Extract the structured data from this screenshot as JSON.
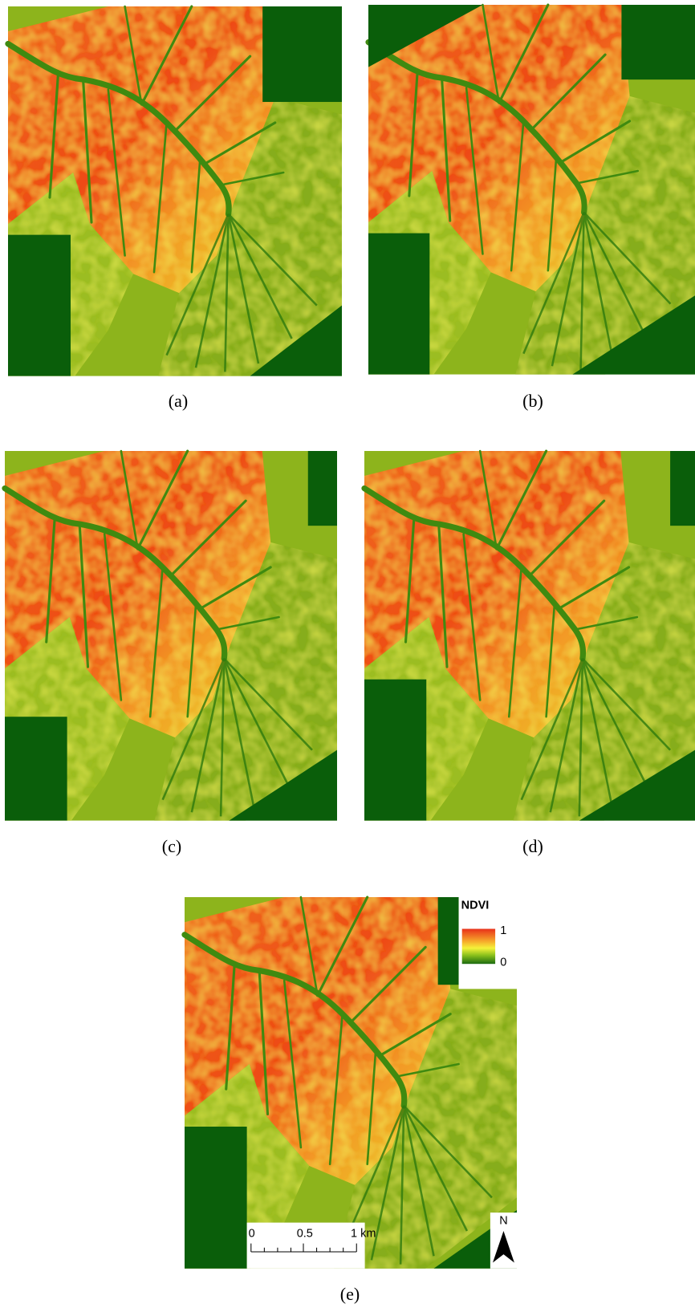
{
  "panels": [
    {
      "caption": "(a)"
    },
    {
      "caption": "(b)"
    },
    {
      "caption": "(c)"
    },
    {
      "caption": "(d)"
    },
    {
      "caption": "(e)"
    }
  ],
  "legend": {
    "title": "NDVI",
    "max": "1",
    "min": "0"
  },
  "scale_bar": {
    "labels": [
      "0",
      "0.5",
      "1 km"
    ]
  },
  "north_arrow": "N"
}
